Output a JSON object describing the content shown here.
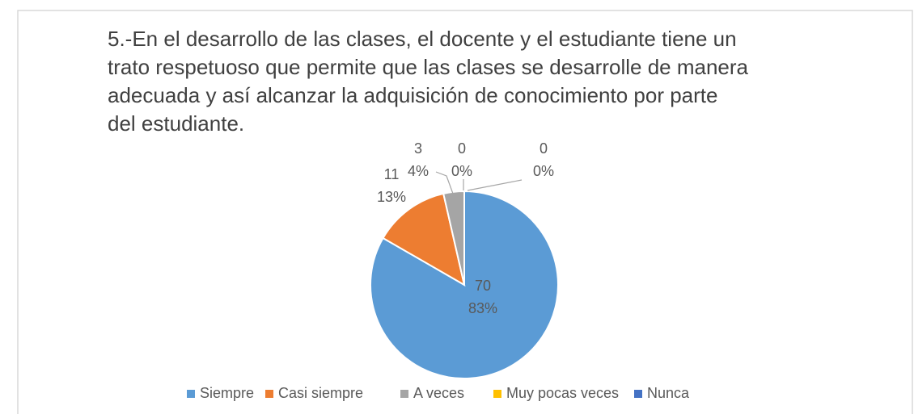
{
  "chart_data": {
    "type": "pie",
    "title_lines": [
      "5.-En el desarrollo de las clases, el docente  y el estudiante  tiene un",
      "trato respetuoso que permite que las clases se desarrolle de manera",
      "adecuada y así alcanzar la adquisición de conocimiento por  parte",
      "del estudiante."
    ],
    "categories": [
      "Siempre",
      "Casi siempre",
      "A veces",
      "Muy pocas veces",
      "Nunca"
    ],
    "values": [
      70,
      11,
      3,
      0,
      0
    ],
    "percent_labels": [
      "83%",
      "13%",
      "4%",
      "0%",
      "0%"
    ],
    "colors": [
      "#5b9bd5",
      "#ed7d31",
      "#a5a5a5",
      "#ffc000",
      "#4472c4"
    ],
    "legend": "bottom"
  }
}
